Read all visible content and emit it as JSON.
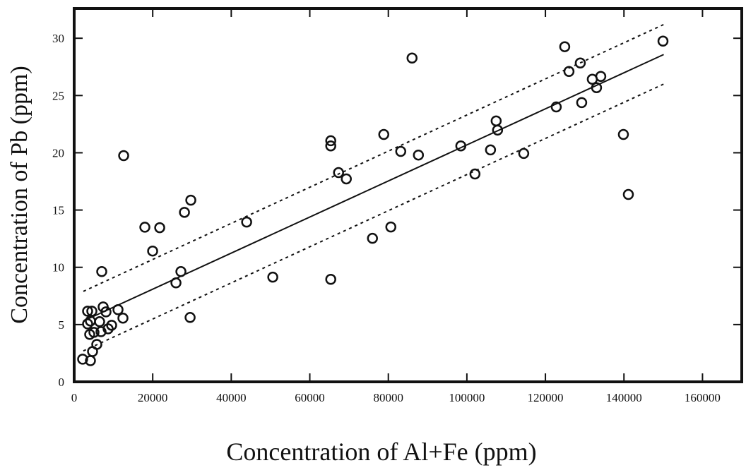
{
  "chart_data": {
    "type": "scatter",
    "x_label": "Concentration of Al+Fe (ppm)",
    "y_label": "Concentration of Pb (ppm)",
    "xlim": [
      0,
      170000
    ],
    "ylim": [
      0,
      32.6
    ],
    "xticks": [
      0,
      20000,
      40000,
      60000,
      80000,
      100000,
      120000,
      140000,
      160000
    ],
    "yticks": [
      0,
      5,
      10,
      15,
      20,
      25,
      30
    ],
    "color": "#111111",
    "x": [
      2160,
      4140,
      4680,
      5760,
      3960,
      5040,
      6840,
      3420,
      6480,
      9540,
      8640,
      12420,
      4140,
      3420,
      4500,
      7380,
      8100,
      11160,
      7020,
      12600,
      18000,
      21780,
      19980,
      28080,
      29700,
      25920,
      27180,
      29520,
      43920,
      50580,
      65340,
      65340,
      65340,
      67320,
      69300,
      75960,
      80640,
      78840,
      83160,
      86040,
      87660,
      98460,
      102060,
      106020,
      107460,
      107820,
      114480,
      122760,
      124920,
      126000,
      128880,
      129240,
      131940,
      133020,
      134100,
      139860,
      141120,
      149940
    ],
    "values": [
      1.98,
      1.85,
      2.65,
      3.27,
      4.14,
      4.32,
      4.38,
      5.06,
      5.25,
      4.94,
      4.63,
      5.56,
      5.31,
      6.17,
      6.17,
      6.54,
      6.11,
      6.3,
      9.63,
      19.75,
      13.5,
      13.46,
      11.42,
      14.8,
      15.86,
      8.64,
      9.63,
      5.62,
      13.95,
      9.14,
      21.05,
      20.6,
      8.95,
      18.27,
      17.72,
      12.53,
      13.52,
      21.6,
      20.12,
      28.27,
      19.8,
      20.6,
      18.15,
      20.25,
      22.78,
      21.98,
      19.94,
      24.0,
      29.26,
      27.1,
      27.84,
      24.38,
      26.42,
      25.68,
      26.67,
      21.6,
      16.36,
      29.75
    ],
    "lines": [
      {
        "style": "solid",
        "x": [
          2340,
          150120
        ],
        "values": [
          5.31,
          28.58
        ]
      },
      {
        "style": "dotted",
        "x": [
          2340,
          150120
        ],
        "values": [
          7.9,
          31.2
        ]
      },
      {
        "style": "dotted",
        "x": [
          2340,
          150120
        ],
        "values": [
          2.7,
          26.0
        ]
      }
    ]
  }
}
